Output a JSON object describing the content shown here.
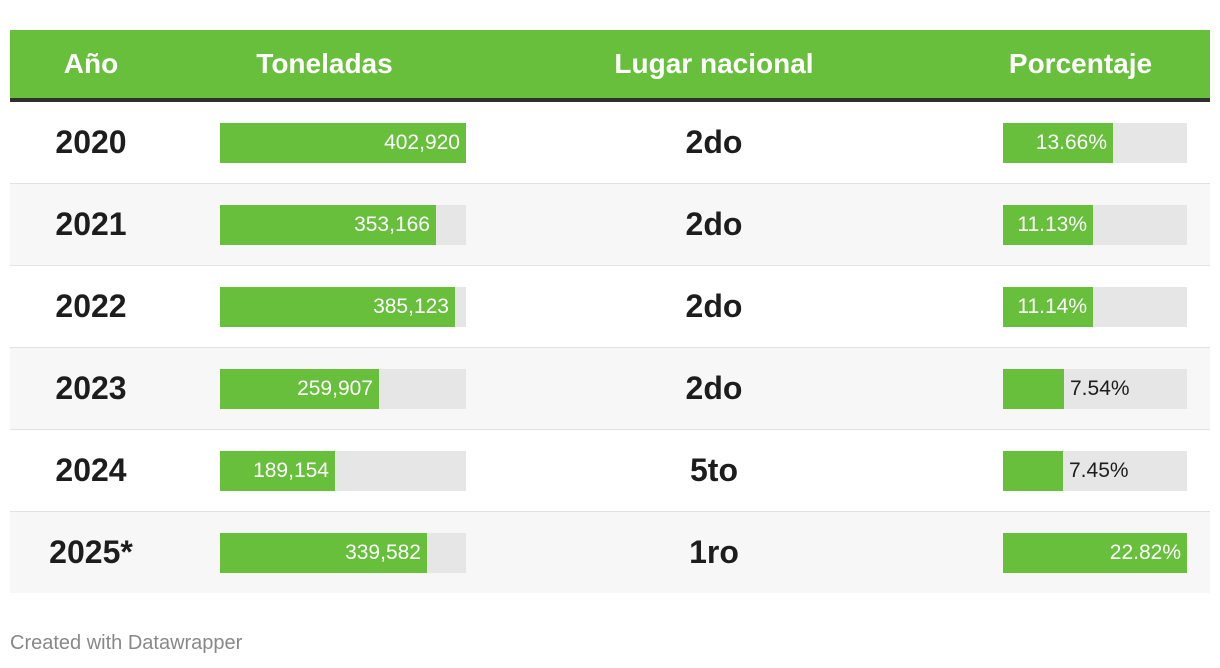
{
  "table": {
    "headers": {
      "year": "Año",
      "tons": "Toneladas",
      "rank": "Lugar nacional",
      "percent": "Porcentaje"
    }
  },
  "chart_data": {
    "type": "table",
    "columns": [
      "Año",
      "Toneladas",
      "Lugar nacional",
      "Porcentaje"
    ],
    "tons_max": 402920,
    "percent_max": 22.82,
    "rows": [
      {
        "year": "2020",
        "tons": 402920,
        "tons_label": "402,920",
        "rank": "2do",
        "percent": 13.66,
        "percent_label": "13.66%"
      },
      {
        "year": "2021",
        "tons": 353166,
        "tons_label": "353,166",
        "rank": "2do",
        "percent": 11.13,
        "percent_label": "11.13%"
      },
      {
        "year": "2022",
        "tons": 385123,
        "tons_label": "385,123",
        "rank": "2do",
        "percent": 11.14,
        "percent_label": "11.14%"
      },
      {
        "year": "2023",
        "tons": 259907,
        "tons_label": "259,907",
        "rank": "2do",
        "percent": 7.54,
        "percent_label": "7.54%"
      },
      {
        "year": "2024",
        "tons": 189154,
        "tons_label": "189,154",
        "rank": "5to",
        "percent": 7.45,
        "percent_label": "7.45%"
      },
      {
        "year": "2025*",
        "tons": 339582,
        "tons_label": "339,582",
        "rank": "1ro",
        "percent": 22.82,
        "percent_label": "22.82%"
      }
    ],
    "colors": {
      "bar": "#67bf3c",
      "track": "#e6e6e6",
      "header_bg": "#67bf3c"
    }
  },
  "footer": {
    "credit": "Created with Datawrapper"
  }
}
